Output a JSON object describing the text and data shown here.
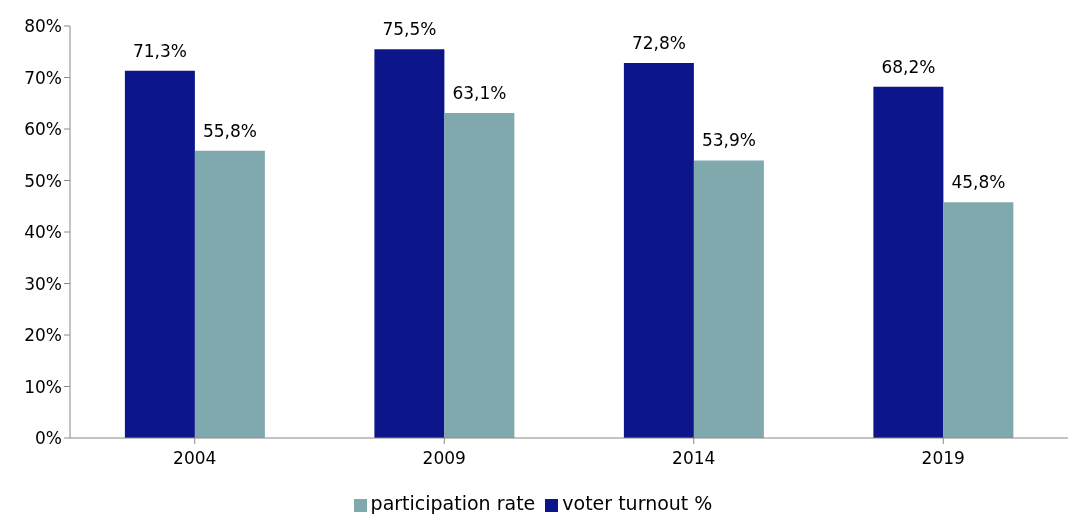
{
  "chart_data": {
    "type": "bar",
    "categories": [
      "2004",
      "2009",
      "2014",
      "2019"
    ],
    "series": [
      {
        "name": "voter turnout %",
        "color": "#0c168a",
        "values": [
          71.3,
          75.5,
          72.8,
          68.2
        ],
        "value_labels": [
          "71,3%",
          "75,5%",
          "72,8%",
          "68,2%"
        ]
      },
      {
        "name": "participation rate",
        "color": "#80a9ae",
        "values": [
          55.8,
          63.1,
          53.9,
          45.8
        ],
        "value_labels": [
          "55,8%",
          "63,1%",
          "53,9%",
          "45,8%"
        ]
      }
    ],
    "ylim": [
      0,
      80
    ],
    "yticks": [
      {
        "value": 0,
        "label": "0%"
      },
      {
        "value": 10,
        "label": "10%"
      },
      {
        "value": 20,
        "label": "20%"
      },
      {
        "value": 30,
        "label": "30%"
      },
      {
        "value": 40,
        "label": "40%"
      },
      {
        "value": 50,
        "label": "50%"
      },
      {
        "value": 60,
        "label": "60%"
      },
      {
        "value": 70,
        "label": "70%"
      },
      {
        "value": 80,
        "label": "80%"
      }
    ],
    "grid": false,
    "legend": "bottom"
  }
}
